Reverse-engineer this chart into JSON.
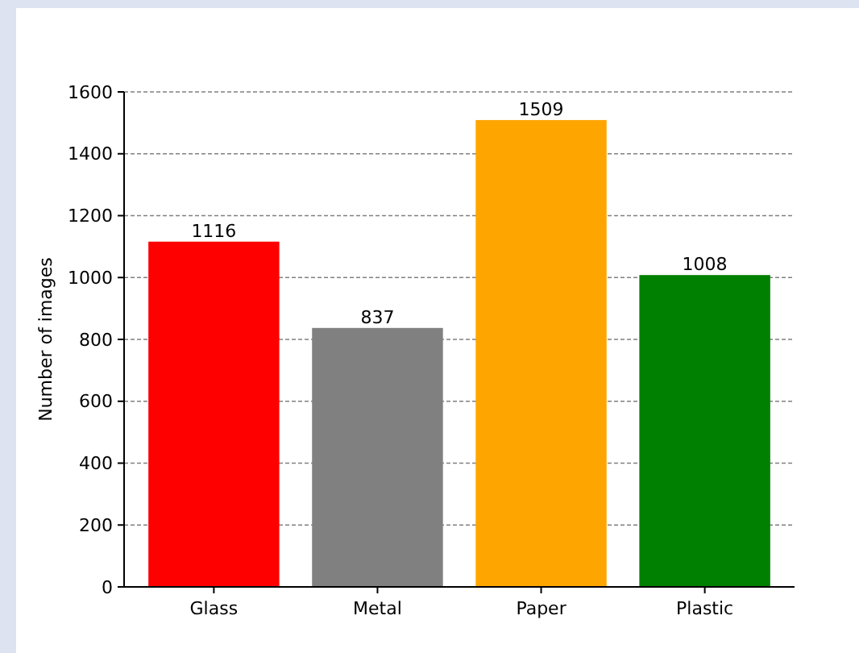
{
  "chart_data": {
    "type": "bar",
    "ylabel": "Number of images",
    "categories": [
      "Glass",
      "Metal",
      "Paper",
      "Plastic"
    ],
    "values": [
      1116,
      837,
      1509,
      1008
    ],
    "colors": [
      "#ff0000",
      "#808080",
      "#ffa500",
      "#008000"
    ],
    "ylim": [
      0,
      1600
    ],
    "yticks": [
      0,
      200,
      400,
      600,
      800,
      1000,
      1200,
      1400,
      1600
    ],
    "grid": "y",
    "data_labels": true
  }
}
